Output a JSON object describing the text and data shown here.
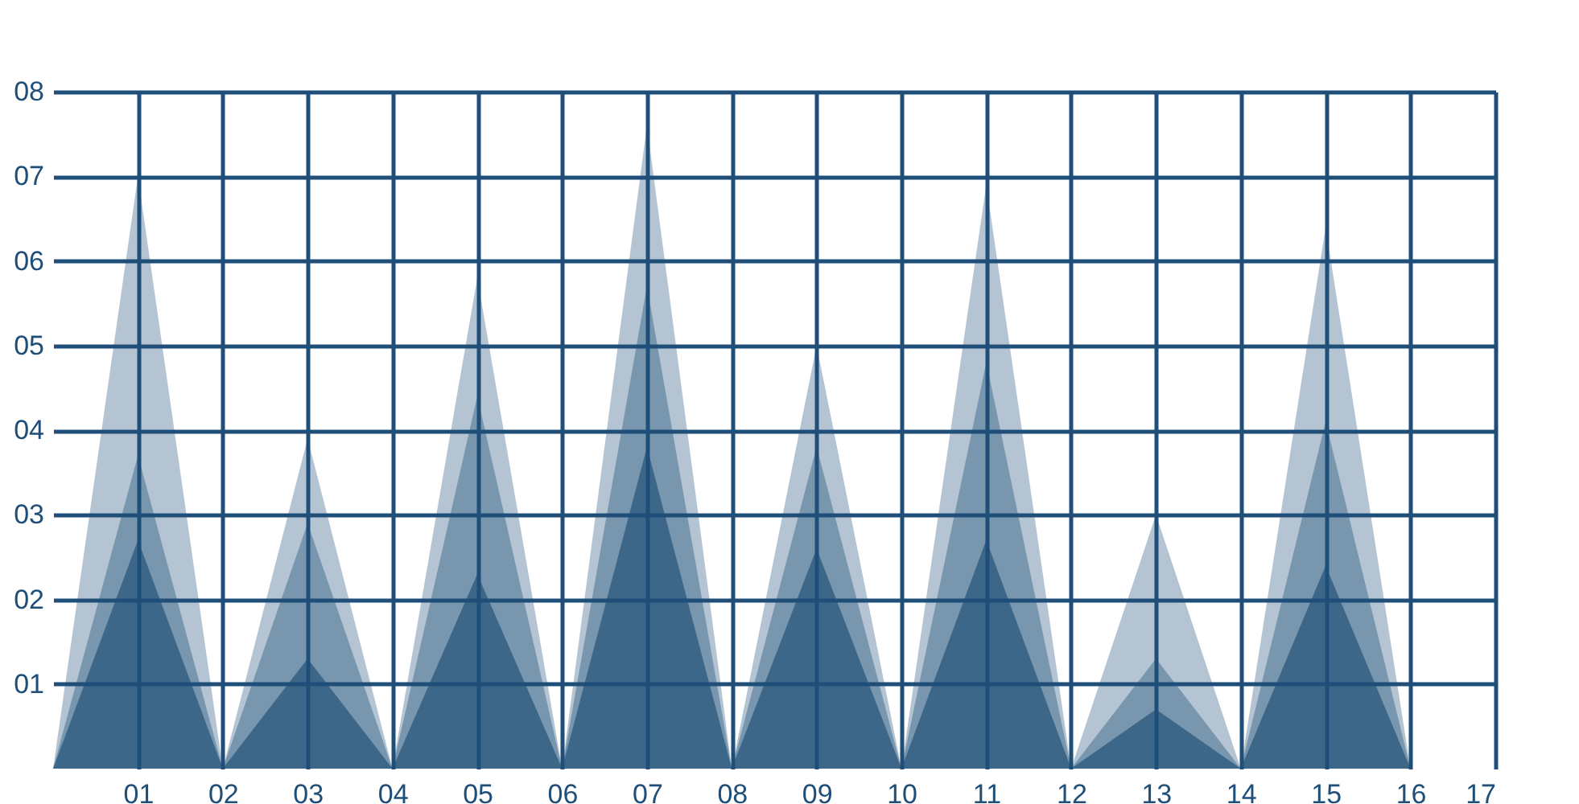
{
  "chart_data": {
    "type": "area",
    "x": [
      0,
      1,
      2,
      3,
      4,
      5,
      6,
      7,
      8,
      9,
      10,
      11,
      12,
      13,
      14,
      15,
      16
    ],
    "series": [
      {
        "color": "#b4c4d2",
        "values": [
          0,
          7.0,
          0,
          3.9,
          0,
          5.8,
          0,
          7.6,
          0,
          5.0,
          0,
          6.9,
          0,
          3.0,
          0,
          6.4,
          0
        ]
      },
      {
        "color": "#7896ae",
        "values": [
          0,
          3.7,
          0,
          2.9,
          0,
          4.4,
          0,
          5.7,
          0,
          3.8,
          0,
          4.8,
          0,
          1.3,
          0,
          4.1,
          0
        ]
      },
      {
        "color": "#3d6789",
        "values": [
          0,
          2.7,
          0,
          1.3,
          0,
          2.3,
          0,
          3.8,
          0,
          2.6,
          0,
          2.7,
          0,
          0.7,
          0,
          2.4,
          0
        ]
      }
    ],
    "xlim": [
      0,
      17
    ],
    "ylim": [
      0,
      8
    ],
    "xticks": [
      {
        "value": 1,
        "label": "01"
      },
      {
        "value": 2,
        "label": "02"
      },
      {
        "value": 3,
        "label": "03"
      },
      {
        "value": 4,
        "label": "04"
      },
      {
        "value": 5,
        "label": "05"
      },
      {
        "value": 6,
        "label": "06"
      },
      {
        "value": 7,
        "label": "07"
      },
      {
        "value": 8,
        "label": "08"
      },
      {
        "value": 9,
        "label": "09"
      },
      {
        "value": 10,
        "label": "10"
      },
      {
        "value": 11,
        "label": "11"
      },
      {
        "value": 12,
        "label": "12"
      },
      {
        "value": 13,
        "label": "13"
      },
      {
        "value": 14,
        "label": "14"
      },
      {
        "value": 15,
        "label": "15"
      },
      {
        "value": 16,
        "label": "16"
      },
      {
        "value": 17,
        "label": "17"
      }
    ],
    "yticks": [
      {
        "value": 1,
        "label": "01"
      },
      {
        "value": 2,
        "label": "02"
      },
      {
        "value": 3,
        "label": "03"
      },
      {
        "value": 4,
        "label": "04"
      },
      {
        "value": 5,
        "label": "05"
      },
      {
        "value": 6,
        "label": "06"
      },
      {
        "value": 7,
        "label": "07"
      },
      {
        "value": 8,
        "label": "08"
      }
    ],
    "grid": true
  }
}
